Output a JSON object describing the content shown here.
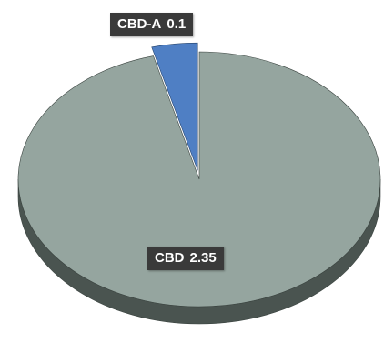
{
  "chart_data": {
    "type": "pie",
    "style": "3d-exploded",
    "slices": [
      {
        "label": "CBD",
        "value": 2.35,
        "color": "#95a59f",
        "side_color": "#4a5450",
        "edge_color": "#3b4440"
      },
      {
        "label": "CBD-A",
        "value": 0.1,
        "color": "#4f7fc4",
        "side_color": "#2d4f84",
        "edge_color": "#27466f"
      }
    ],
    "data_labels": [
      {
        "category": "CBD",
        "value": "2.35"
      },
      {
        "category": "CBD-A",
        "value": "0.1"
      }
    ],
    "legend": "none",
    "title": ""
  }
}
